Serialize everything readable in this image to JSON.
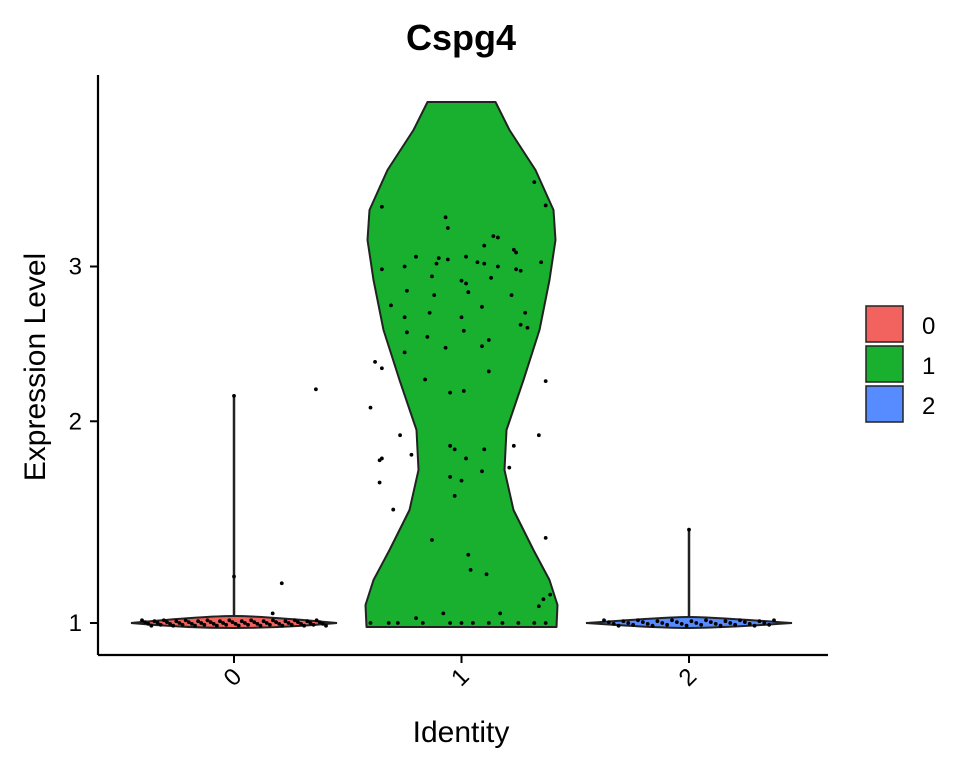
{
  "colors": {
    "0": "#F2625E",
    "1": "#18B02E",
    "2": "#568CFF",
    "outline": "#222222",
    "axis": "#000000"
  },
  "chart_data": {
    "type": "violin",
    "title": "Cspg4",
    "xlabel": "Identity",
    "ylabel": "Expression Level",
    "categories": [
      "0",
      "1",
      "2"
    ],
    "x_ticks": [
      "0",
      "1",
      "2"
    ],
    "y_ticks": [
      1,
      2,
      3
    ],
    "y_scale": "sqrt",
    "ylim": [
      0.85,
      3.7
    ],
    "legend": {
      "position": "right",
      "entries": [
        "0",
        "1",
        "2"
      ]
    },
    "violins": [
      {
        "group": "0",
        "min": 0.98,
        "max": 2.15,
        "outliers": [
          2.15,
          1.2,
          1.03
        ],
        "extra_points": [
          {
            "x": 0.36,
            "y": 2.19
          },
          {
            "x": 0.21,
            "y": 1.17
          },
          {
            "x": 0.0,
            "y": 1.2
          },
          {
            "x": 0.17,
            "y": 1.04
          }
        ]
      },
      {
        "group": "1",
        "min": 1.0,
        "max": 3.65,
        "points": [
          {
            "x": -0.35,
            "y": 3.44
          },
          {
            "x": -0.07,
            "y": 3.36
          },
          {
            "x": 0.32,
            "y": 3.63
          },
          {
            "x": 0.37,
            "y": 3.45
          },
          {
            "x": -0.06,
            "y": 3.28
          },
          {
            "x": 0.14,
            "y": 3.22
          },
          {
            "x": 0.16,
            "y": 3.21
          },
          {
            "x": 0.1,
            "y": 3.15
          },
          {
            "x": 0.23,
            "y": 3.12
          },
          {
            "x": 0.24,
            "y": 3.1
          },
          {
            "x": -0.2,
            "y": 3.07
          },
          {
            "x": -0.1,
            "y": 3.06
          },
          {
            "x": -0.06,
            "y": 3.05
          },
          {
            "x": 0.02,
            "y": 3.07
          },
          {
            "x": 0.07,
            "y": 3.03
          },
          {
            "x": 0.35,
            "y": 3.03
          },
          {
            "x": -0.25,
            "y": 3.0
          },
          {
            "x": -0.11,
            "y": 3.02
          },
          {
            "x": 0.1,
            "y": 3.02
          },
          {
            "x": 0.16,
            "y": 3.0
          },
          {
            "x": 0.24,
            "y": 2.98
          },
          {
            "x": 0.26,
            "y": 2.97
          },
          {
            "x": -0.35,
            "y": 2.98
          },
          {
            "x": -0.13,
            "y": 2.93
          },
          {
            "x": 0.0,
            "y": 2.9
          },
          {
            "x": 0.02,
            "y": 2.88
          },
          {
            "x": 0.13,
            "y": 2.92
          },
          {
            "x": -0.24,
            "y": 2.83
          },
          {
            "x": -0.12,
            "y": 2.8
          },
          {
            "x": 0.03,
            "y": 2.82
          },
          {
            "x": 0.22,
            "y": 2.8
          },
          {
            "x": -0.31,
            "y": 2.73
          },
          {
            "x": 0.09,
            "y": 2.72
          },
          {
            "x": -0.14,
            "y": 2.68
          },
          {
            "x": 0.28,
            "y": 2.68
          },
          {
            "x": -0.25,
            "y": 2.65
          },
          {
            "x": 0.0,
            "y": 2.65
          },
          {
            "x": 0.26,
            "y": 2.6
          },
          {
            "x": 0.29,
            "y": 2.58
          },
          {
            "x": -0.24,
            "y": 2.55
          },
          {
            "x": 0.01,
            "y": 2.56
          },
          {
            "x": -0.15,
            "y": 2.52
          },
          {
            "x": 0.12,
            "y": 2.5
          },
          {
            "x": -0.07,
            "y": 2.45
          },
          {
            "x": 0.09,
            "y": 2.46
          },
          {
            "x": -0.25,
            "y": 2.42
          },
          {
            "x": -0.38,
            "y": 2.36
          },
          {
            "x": -0.35,
            "y": 2.32
          },
          {
            "x": 0.12,
            "y": 2.3
          },
          {
            "x": -0.16,
            "y": 2.25
          },
          {
            "x": 0.37,
            "y": 2.24
          },
          {
            "x": 0.01,
            "y": 2.18
          },
          {
            "x": -0.05,
            "y": 2.17
          },
          {
            "x": -0.4,
            "y": 2.08
          },
          {
            "x": 0.34,
            "y": 1.92
          },
          {
            "x": -0.27,
            "y": 1.92
          },
          {
            "x": -0.05,
            "y": 1.86
          },
          {
            "x": -0.03,
            "y": 1.84
          },
          {
            "x": 0.1,
            "y": 1.84
          },
          {
            "x": 0.23,
            "y": 1.86
          },
          {
            "x": -0.35,
            "y": 1.79
          },
          {
            "x": -0.22,
            "y": 1.81
          },
          {
            "x": 0.02,
            "y": 1.79
          },
          {
            "x": -0.36,
            "y": 1.78
          },
          {
            "x": 0.21,
            "y": 1.74
          },
          {
            "x": 0.09,
            "y": 1.72
          },
          {
            "x": -0.05,
            "y": 1.69
          },
          {
            "x": -0.36,
            "y": 1.66
          },
          {
            "x": 0.0,
            "y": 1.67
          },
          {
            "x": -0.03,
            "y": 1.59
          },
          {
            "x": -0.3,
            "y": 1.52
          },
          {
            "x": 0.37,
            "y": 1.38
          },
          {
            "x": -0.13,
            "y": 1.37
          },
          {
            "x": 0.03,
            "y": 1.3
          },
          {
            "x": 0.04,
            "y": 1.23
          },
          {
            "x": 0.11,
            "y": 1.21
          },
          {
            "x": 0.39,
            "y": 1.12
          },
          {
            "x": 0.36,
            "y": 1.1
          },
          {
            "x": 0.34,
            "y": 1.07
          },
          {
            "x": -0.08,
            "y": 1.04
          },
          {
            "x": -0.2,
            "y": 1.02
          },
          {
            "x": 0.17,
            "y": 1.04
          },
          {
            "x": -0.4,
            "y": 1.0
          },
          {
            "x": -0.32,
            "y": 1.0
          },
          {
            "x": -0.28,
            "y": 1.0
          },
          {
            "x": -0.17,
            "y": 1.0
          },
          {
            "x": -0.05,
            "y": 1.0
          },
          {
            "x": 0.0,
            "y": 1.0
          },
          {
            "x": 0.05,
            "y": 1.0
          },
          {
            "x": 0.12,
            "y": 1.0
          },
          {
            "x": 0.18,
            "y": 1.0
          },
          {
            "x": 0.25,
            "y": 1.0
          },
          {
            "x": 0.32,
            "y": 1.0
          },
          {
            "x": 0.37,
            "y": 1.0
          }
        ]
      },
      {
        "group": "2",
        "min": 0.98,
        "max": 1.42,
        "outliers": [
          1.42
        ]
      }
    ]
  }
}
